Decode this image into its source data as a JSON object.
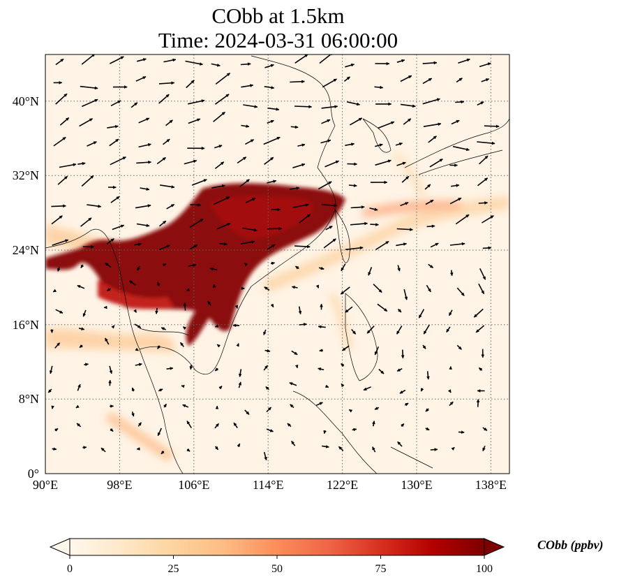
{
  "title_line1": "CObb at 1.5km",
  "title_line2": "Time: 2024-03-31 06:00:00",
  "map": {
    "lon_range": [
      90,
      140
    ],
    "lat_range": [
      0,
      45
    ],
    "lon_ticks": [
      "90°E",
      "98°E",
      "106°E",
      "114°E",
      "122°E",
      "130°E",
      "138°E"
    ],
    "lon_tick_values": [
      90,
      98,
      106,
      114,
      122,
      130,
      138
    ],
    "lat_ticks": [
      "0°",
      "8°N",
      "16°N",
      "24°N",
      "32°N",
      "40°N"
    ],
    "lat_tick_values": [
      0,
      8,
      16,
      24,
      32,
      40
    ],
    "gridlines": "dotted"
  },
  "colorbar": {
    "label": "CObb (ppbv)",
    "ticks": [
      "0",
      "25",
      "50",
      "75",
      "100"
    ],
    "tick_values": [
      0,
      25,
      50,
      75,
      100
    ],
    "range": [
      0,
      100
    ],
    "colormap": "OrRd",
    "extend": "both"
  },
  "colors": {
    "low": "#fff7ec",
    "mid": "#fdbb84",
    "high": "#7f0000"
  }
}
